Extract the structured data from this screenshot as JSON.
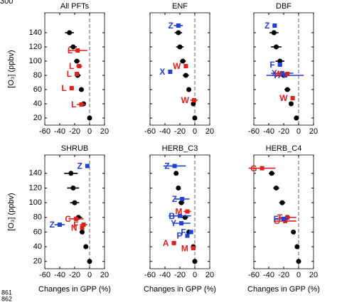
{
  "line_numbers": [
    "300",
    "861",
    "862"
  ],
  "chart_data": [
    {
      "type": "scatter",
      "title": "All PFTs",
      "ylabel": "[O₃] (ppbv)",
      "xlim": [
        -60,
        20
      ],
      "xticks": [
        -60,
        -40,
        -20,
        0,
        20
      ],
      "ylim": [
        10,
        168
      ],
      "yticks": [
        20,
        40,
        60,
        80,
        100,
        120,
        140
      ],
      "series": [
        {
          "color": "#000000",
          "x": [
            0,
            -8,
            -11,
            -16,
            -17,
            -22,
            -27
          ],
          "values": [
            20,
            40,
            60,
            80,
            100,
            120,
            140
          ],
          "xerr": [
            1,
            3,
            3,
            4,
            4,
            5,
            6
          ]
        },
        {
          "color": "#e0201b",
          "x": [
            -11,
            -24,
            -17,
            -14,
            -16
          ],
          "values": [
            39,
            62,
            82,
            93,
            115
          ],
          "xerr": [
            6,
            3,
            3,
            4,
            13
          ],
          "point_labels": [
            "L",
            "L",
            "L",
            "L",
            "L"
          ]
        }
      ]
    },
    {
      "type": "scatter",
      "title": "ENF",
      "xlim": [
        -60,
        20
      ],
      "xticks": [
        -60,
        -40,
        -20,
        0,
        20
      ],
      "ylim": [
        10,
        168
      ],
      "yticks": [
        20,
        40,
        60,
        80,
        100,
        120,
        140
      ],
      "series": [
        {
          "color": "#000000",
          "x": [
            0,
            -2,
            -8,
            -12,
            -16,
            -20,
            -22
          ],
          "values": [
            20,
            40,
            60,
            80,
            100,
            120,
            140
          ],
          "xerr": [
            1,
            3,
            3,
            4,
            4,
            5,
            5
          ]
        },
        {
          "color": "#1f3fd6",
          "x": [
            -22,
            -33
          ],
          "values": [
            150,
            85
          ],
          "xerr": [
            6,
            0
          ],
          "point_labels": [
            "Z",
            "X"
          ]
        },
        {
          "color": "#e0201b",
          "x": [
            -12,
            -1
          ],
          "values": [
            93,
            45
          ],
          "xerr": [
            2,
            5
          ],
          "point_labels": [
            "W",
            "W"
          ]
        }
      ]
    },
    {
      "type": "scatter",
      "title": "DBF",
      "xlim": [
        -60,
        20
      ],
      "xticks": [
        -60,
        -40,
        -20,
        0,
        20
      ],
      "ylim": [
        10,
        168
      ],
      "yticks": [
        20,
        40,
        60,
        80,
        100,
        120,
        140
      ],
      "series": [
        {
          "color": "#000000",
          "x": [
            -3,
            -10,
            -15,
            -20,
            -25,
            -30,
            -33
          ],
          "values": [
            20,
            40,
            60,
            80,
            100,
            120,
            140
          ],
          "xerr": [
            1,
            3,
            4,
            5,
            6,
            7,
            6
          ]
        },
        {
          "color": "#1f3fd6",
          "x": [
            -32,
            -25,
            -22,
            -18
          ],
          "values": [
            150,
            95,
            83,
            80
          ],
          "xerr": [
            3,
            3,
            15,
            25
          ],
          "point_labels": [
            "Z",
            "F",
            "X",
            "H"
          ]
        },
        {
          "color": "#e0201b",
          "x": [
            -15,
            -8
          ],
          "values": [
            82,
            48
          ],
          "xerr": [
            2,
            1
          ],
          "point_labels": [
            "W",
            "W"
          ]
        }
      ]
    },
    {
      "type": "scatter",
      "title": "SHRUB",
      "ylabel": "[O₃] (ppbv)",
      "xlabel": "Changes in GPP (%)",
      "xlim": [
        -60,
        20
      ],
      "xticks": [
        -60,
        -40,
        -20,
        0,
        20
      ],
      "ylim": [
        10,
        165
      ],
      "yticks": [
        20,
        40,
        60,
        80,
        100,
        120,
        140
      ],
      "series": [
        {
          "color": "#000000",
          "x": [
            0,
            -5,
            -10,
            -15,
            -20,
            -22,
            -25
          ],
          "values": [
            20,
            40,
            60,
            80,
            100,
            120,
            140
          ],
          "xerr": [
            1,
            2,
            3,
            5,
            6,
            8,
            9
          ]
        },
        {
          "color": "#1f3fd6",
          "x": [
            -3,
            -40
          ],
          "values": [
            150,
            70
          ],
          "xerr": [
            0,
            7
          ],
          "point_labels": [
            "Z",
            "Z"
          ]
        },
        {
          "color": "#e0201b",
          "x": [
            -18,
            -8,
            -10
          ],
          "values": [
            78,
            70,
            66
          ],
          "xerr": [
            10,
            5,
            2
          ],
          "point_labels": [
            "C",
            "F",
            "N"
          ]
        }
      ]
    },
    {
      "type": "scatter",
      "title": "HERB_C3",
      "xlabel": "Changes in GPP (%)",
      "xlim": [
        -60,
        20
      ],
      "xticks": [
        -60,
        -40,
        -20,
        0,
        20
      ],
      "ylim": [
        10,
        165
      ],
      "yticks": [
        20,
        40,
        60,
        80,
        100,
        120,
        140
      ],
      "series": [
        {
          "color": "#000000",
          "x": [
            0,
            -2,
            -8,
            -13,
            -18,
            -22,
            -25
          ],
          "values": [
            20,
            40,
            60,
            80,
            100,
            120,
            140
          ],
          "xerr": [
            1,
            2,
            3,
            4,
            4,
            2,
            2
          ]
        },
        {
          "color": "#1f3fd6",
          "x": [
            -27,
            -17,
            -20,
            -18,
            -5,
            -10
          ],
          "values": [
            150,
            105,
            82,
            72,
            60,
            55
          ],
          "xerr": [
            15,
            10,
            15,
            12,
            2,
            2
          ],
          "point_labels": [
            "Z",
            "Z",
            "B",
            "Y",
            "F",
            "P"
          ]
        },
        {
          "color": "#e0201b",
          "x": [
            -10,
            -28,
            -2
          ],
          "values": [
            88,
            45,
            38
          ],
          "xerr": [
            5,
            3,
            3
          ],
          "point_labels": [
            "M",
            "A",
            "M"
          ]
        }
      ]
    },
    {
      "type": "scatter",
      "title": "HERB_C4",
      "xlabel": "Changes in GPP (%)",
      "xlim": [
        -60,
        20
      ],
      "xticks": [
        -60,
        -40,
        -20,
        0,
        20
      ],
      "ylim": [
        10,
        165
      ],
      "yticks": [
        20,
        40,
        60,
        80,
        100,
        120,
        140
      ],
      "series": [
        {
          "color": "#000000",
          "x": [
            0,
            -2,
            -7,
            -15,
            -22,
            -30,
            -36
          ],
          "values": [
            20,
            40,
            60,
            80,
            100,
            120,
            140
          ],
          "xerr": [
            1,
            2,
            3,
            4,
            4,
            4,
            4
          ]
        },
        {
          "color": "#e0201b",
          "x": [
            -49,
            -15,
            -18
          ],
          "values": [
            147,
            80,
            75
          ],
          "xerr": [
            18,
            12,
            15
          ],
          "point_labels": [
            "G",
            "T",
            "G"
          ]
        },
        {
          "color": "#1f3fd6",
          "x": [
            -20
          ],
          "values": [
            78
          ],
          "xerr": [
            6
          ],
          "point_labels": [
            "F"
          ]
        }
      ]
    }
  ]
}
